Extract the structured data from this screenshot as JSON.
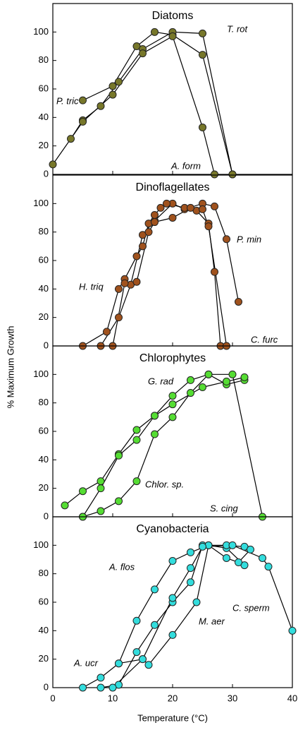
{
  "ylabel": "% Maximum Growth",
  "chart_data": [
    {
      "type": "line",
      "title": "Diatoms",
      "xlim": [
        0,
        40
      ],
      "xticks": [
        0,
        10,
        20,
        30,
        40
      ],
      "ylim": [
        0,
        120
      ],
      "yticks": [
        0,
        20,
        40,
        60,
        80,
        100
      ],
      "series": [
        {
          "name": "P. tric",
          "color": "#77772a",
          "x": [
            5,
            10,
            14,
            17,
            20,
            25,
            30
          ],
          "values": [
            52,
            62,
            90,
            100,
            98,
            84,
            0
          ]
        },
        {
          "name": "T. rot",
          "color": "#77772a",
          "x": [
            3,
            5,
            8,
            11,
            15,
            20,
            25,
            30
          ],
          "values": [
            25,
            38,
            48,
            65,
            88,
            100,
            99,
            0
          ]
        },
        {
          "name": "A. form",
          "color": "#77772a",
          "x": [
            0,
            5,
            10,
            15,
            20,
            25,
            27
          ],
          "values": [
            7,
            37,
            56,
            85,
            97,
            33,
            0
          ]
        }
      ]
    },
    {
      "type": "line",
      "title": "Dinoflagellates",
      "xlim": [
        0,
        40
      ],
      "xticks": [
        0,
        10,
        20,
        30,
        40
      ],
      "ylim": [
        0,
        120
      ],
      "yticks": [
        0,
        20,
        40,
        60,
        80,
        100
      ],
      "series": [
        {
          "name": "P. min",
          "color": "#a0521d",
          "x": [
            8,
            11,
            13,
            15,
            17,
            20,
            22,
            25,
            27,
            29,
            31
          ],
          "values": [
            0,
            20,
            43,
            78,
            88,
            100,
            96,
            100,
            98,
            75,
            31
          ]
        },
        {
          "name": "H. triq",
          "color": "#a0521d",
          "x": [
            5,
            9,
            11,
            12,
            14,
            15,
            16,
            17,
            18,
            19,
            22,
            24,
            26,
            27,
            28
          ],
          "values": [
            0,
            10,
            40,
            47,
            63,
            70,
            86,
            92,
            97,
            100,
            97,
            95,
            86,
            52,
            0
          ]
        },
        {
          "name": "C. furc",
          "color": "#a0521d",
          "x": [
            10,
            12,
            14,
            16,
            17,
            20,
            23,
            25,
            26,
            29
          ],
          "values": [
            0,
            44,
            45,
            80,
            87,
            90,
            97,
            96,
            84,
            0
          ]
        }
      ]
    },
    {
      "type": "line",
      "title": "Chlorophytes",
      "xlim": [
        0,
        40
      ],
      "xticks": [
        0,
        10,
        20,
        30,
        40
      ],
      "ylim": [
        0,
        120
      ],
      "yticks": [
        0,
        20,
        40,
        60,
        80,
        100
      ],
      "series": [
        {
          "name": "G. rad",
          "color": "#55dd33",
          "x": [
            2,
            5,
            8,
            11,
            14,
            17,
            20,
            23,
            26,
            30,
            35
          ],
          "values": [
            8,
            18,
            25,
            44,
            61,
            71,
            85,
            96,
            100,
            100,
            0
          ]
        },
        {
          "name": "Chlor. sp.",
          "color": "#55dd33",
          "x": [
            5,
            8,
            11,
            14,
            17,
            20,
            23,
            26,
            29,
            32
          ],
          "values": [
            0,
            4,
            11,
            25,
            58,
            70,
            87,
            100,
            93,
            96
          ]
        },
        {
          "name": "S. cing",
          "color": "#55dd33",
          "x": [
            5,
            8,
            11,
            14,
            17,
            20,
            25,
            29,
            32
          ],
          "values": [
            0,
            20,
            43,
            54,
            71,
            79,
            91,
            95,
            98
          ]
        }
      ]
    },
    {
      "type": "line",
      "title": "Cyanobacteria",
      "xlabel": "Temperature (°C)",
      "xlim": [
        0,
        40
      ],
      "xticks": [
        0,
        10,
        20,
        30,
        40
      ],
      "ylim": [
        0,
        120
      ],
      "yticks": [
        0,
        20,
        40,
        60,
        80,
        100
      ],
      "series": [
        {
          "name": "A. flos",
          "color": "#33dddd",
          "x": [
            5,
            8,
            11,
            14,
            17,
            20,
            23,
            26,
            29,
            32
          ],
          "values": [
            0,
            7,
            17,
            47,
            69,
            89,
            95,
            100,
            98,
            86
          ]
        },
        {
          "name": "A. ucr",
          "color": "#33dddd",
          "x": [
            8,
            11,
            14,
            17,
            20,
            23,
            25,
            29,
            32
          ],
          "values": [
            0,
            2,
            25,
            44,
            60,
            74,
            100,
            100,
            99
          ]
        },
        {
          "name": "M. aer",
          "color": "#33dddd",
          "x": [
            10,
            15,
            16,
            20,
            24,
            26,
            29,
            31,
            33
          ],
          "values": [
            0,
            20,
            16,
            37,
            60,
            100,
            91,
            88,
            97
          ]
        },
        {
          "name": "C. sperm",
          "color": "#33dddd",
          "x": [
            11,
            15,
            20,
            23,
            25,
            30,
            35,
            36,
            40
          ],
          "values": [
            17,
            20,
            63,
            84,
            99,
            100,
            91,
            85,
            40
          ]
        }
      ]
    }
  ]
}
